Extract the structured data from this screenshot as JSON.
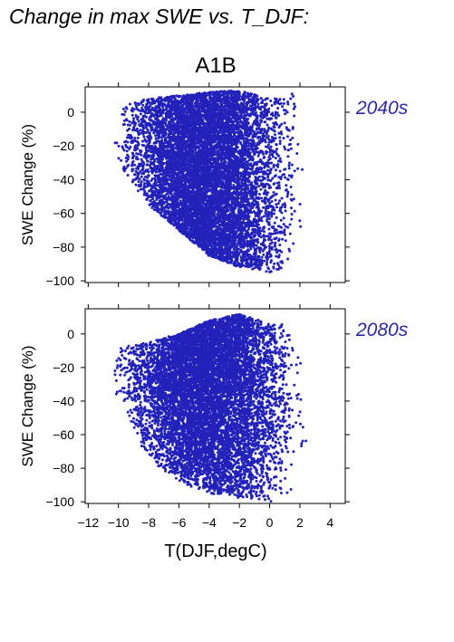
{
  "figure": {
    "title": "Change in max SWE vs. T_DJF:",
    "scenario": "A1B",
    "xlabel": "T(DJF,degC)"
  },
  "colors": {
    "points": "#2222bb",
    "panel_label": "#2a2aa8",
    "axis": "#000000"
  },
  "chart_data": [
    {
      "type": "scatter",
      "panel_label": "2040s",
      "xlabel": "",
      "ylabel": "SWE Change (%)",
      "xlim": [
        -12.2,
        5
      ],
      "ylim": [
        -101,
        15
      ],
      "xticks": [
        -12,
        -10,
        -8,
        -6,
        -4,
        -2,
        0,
        2,
        4
      ],
      "yticks": [
        0,
        -20,
        -40,
        -60,
        -80,
        -100
      ],
      "yticklabels": [
        "0",
        "−20",
        "−40",
        "−60",
        "−80",
        "−100"
      ],
      "series": [
        {
          "points_approx": 20000,
          "x_range": [
            -12.2,
            2.7
          ],
          "y_range": [
            -95,
            13
          ],
          "upper_envelope": [
            [
              -12.2,
              2
            ],
            [
              -10,
              5
            ],
            [
              -8,
              8
            ],
            [
              -4,
              12
            ],
            [
              -2,
              13
            ],
            [
              0,
              8
            ],
            [
              1,
              8
            ],
            [
              1.5,
              12
            ],
            [
              2,
              -10
            ],
            [
              2.7,
              -20
            ]
          ],
          "lower_envelope": [
            [
              -12.2,
              -12
            ],
            [
              -10,
              -30
            ],
            [
              -8,
              -55
            ],
            [
              -6,
              -70
            ],
            [
              -4,
              -85
            ],
            [
              -2,
              -92
            ],
            [
              0,
              -95
            ],
            [
              1,
              -93
            ],
            [
              2,
              -70
            ],
            [
              2.7,
              -45
            ]
          ]
        }
      ]
    },
    {
      "type": "scatter",
      "panel_label": "2080s",
      "xlabel": "T(DJF,degC)",
      "ylabel": "SWE Change (%)",
      "xlim": [
        -12.2,
        5
      ],
      "ylim": [
        -101,
        15
      ],
      "xticks": [
        -12,
        -10,
        -8,
        -6,
        -4,
        -2,
        0,
        2,
        4
      ],
      "xticklabels": [
        "−12",
        "−10",
        "−8",
        "−6",
        "−4",
        "−2",
        "0",
        "2",
        "4"
      ],
      "yticks": [
        0,
        -20,
        -40,
        -60,
        -80,
        -100
      ],
      "yticklabels": [
        "0",
        "−20",
        "−40",
        "−60",
        "−80",
        "−100"
      ],
      "series": [
        {
          "points_approx": 20000,
          "x_range": [
            -12.2,
            2.7
          ],
          "y_range": [
            -100,
            13
          ],
          "upper_envelope": [
            [
              -12.2,
              -18
            ],
            [
              -10,
              -8
            ],
            [
              -8,
              -5
            ],
            [
              -6,
              0
            ],
            [
              -4,
              8
            ],
            [
              -2,
              12
            ],
            [
              0,
              6
            ],
            [
              1,
              6
            ],
            [
              2,
              -15
            ],
            [
              2.7,
              -20
            ]
          ],
          "lower_envelope": [
            [
              -12.2,
              -25
            ],
            [
              -10,
              -40
            ],
            [
              -8,
              -75
            ],
            [
              -6,
              -88
            ],
            [
              -4,
              -95
            ],
            [
              -2,
              -98
            ],
            [
              0,
              -100
            ],
            [
              1,
              -98
            ],
            [
              2,
              -85
            ],
            [
              2.7,
              -60
            ]
          ]
        }
      ]
    }
  ]
}
